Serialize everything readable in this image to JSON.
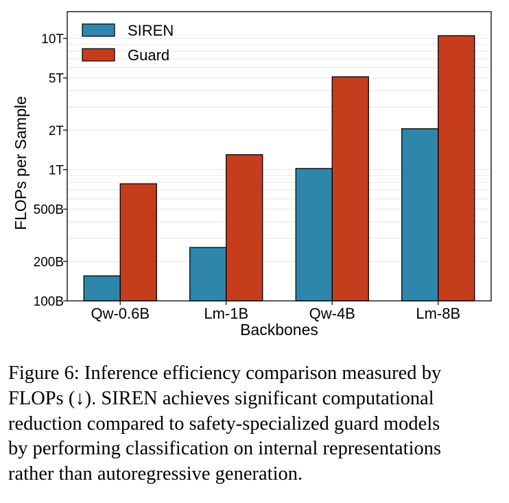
{
  "colors": {
    "siren": "#2e86ab",
    "guard": "#c63d1e",
    "grid": "#e6e6e6"
  },
  "chart_data": {
    "type": "bar",
    "yscale": "log",
    "categories": [
      "Qw-0.6B",
      "Lm-1B",
      "Qw-4B",
      "Lm-8B"
    ],
    "series": [
      {
        "name": "SIREN",
        "values": [
          155000000000.0,
          255000000000.0,
          1020000000000.0,
          2050000000000.0
        ]
      },
      {
        "name": "Guard",
        "values": [
          780000000000.0,
          1300000000000.0,
          5100000000000.0,
          10500000000000.0
        ]
      }
    ],
    "xlabel": "Backbones",
    "ylabel": "FLOPs per Sample",
    "ylim": [
      100000000000.0,
      16000000000000.0
    ],
    "yticks": [
      {
        "value": 100000000000.0,
        "label": "100B"
      },
      {
        "value": 200000000000.0,
        "label": "200B"
      },
      {
        "value": 500000000000.0,
        "label": "500B"
      },
      {
        "value": 1000000000000.0,
        "label": "1T"
      },
      {
        "value": 2000000000000.0,
        "label": "2T"
      },
      {
        "value": 5000000000000.0,
        "label": "5T"
      },
      {
        "value": 10000000000000.0,
        "label": "10T"
      }
    ],
    "grid": true,
    "legend_position": "top-left"
  },
  "caption": {
    "lines": [
      "Figure 6: Inference efficiency comparison measured by",
      "FLOPs (↓). SIREN achieves significant computational",
      "reduction compared to safety-specialized guard models",
      "by performing classification on internal representations",
      "rather than autoregressive generation."
    ]
  }
}
